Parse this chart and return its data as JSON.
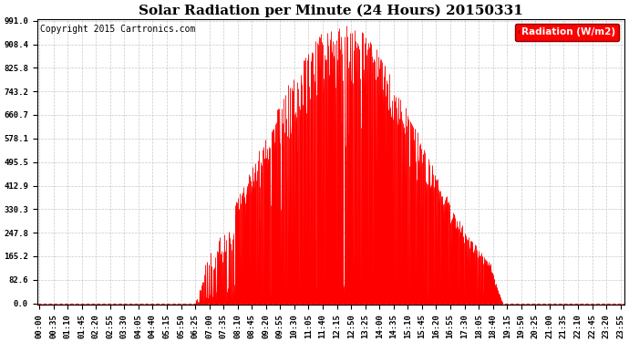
{
  "title": "Solar Radiation per Minute (24 Hours) 20150331",
  "copyright_text": "Copyright 2015 Cartronics.com",
  "legend_label": "Radiation (W/m2)",
  "yticks": [
    0.0,
    82.6,
    165.2,
    247.8,
    330.3,
    412.9,
    495.5,
    578.1,
    660.7,
    743.2,
    825.8,
    908.4,
    991.0
  ],
  "ymax": 991.0,
  "ymin": 0.0,
  "bar_color": "#FF0000",
  "background_color": "#FFFFFF",
  "grid_color": "#BBBBBB",
  "title_fontsize": 11,
  "tick_fontsize": 6.5,
  "copyright_fontsize": 7,
  "legend_fontsize": 7.5,
  "xtick_step_minutes": 35
}
